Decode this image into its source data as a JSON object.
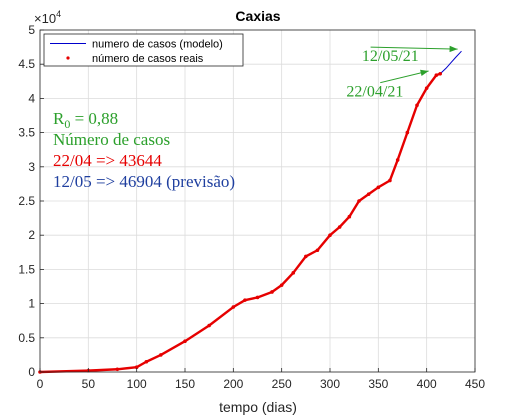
{
  "chart_data": {
    "type": "line",
    "title": "Caxias",
    "xlabel": "tempo (dias)",
    "ylabel": "",
    "xlim": [
      0,
      450
    ],
    "ylim": [
      0,
      5
    ],
    "y_multiplier_label": "×10",
    "y_multiplier_exp": "4",
    "x_ticks": [
      0,
      50,
      100,
      150,
      200,
      250,
      300,
      350,
      400,
      450
    ],
    "x_tick_labels": [
      "0",
      "50",
      "100",
      "150",
      "200",
      "250",
      "300",
      "350",
      "400",
      "450"
    ],
    "y_ticks": [
      0,
      0.5,
      1,
      1.5,
      2,
      2.5,
      3,
      3.5,
      4,
      4.5,
      5
    ],
    "y_tick_labels": [
      "0",
      "0.5",
      "1",
      "1.5",
      "2",
      "2.5",
      "3",
      "3.5",
      "4",
      "4.5",
      "5"
    ],
    "grid": true,
    "legend_position": "top-left",
    "series": [
      {
        "name": "numero de casos (modelo)",
        "color": "#0000cc",
        "style": "line",
        "x": [
          0,
          50,
          80,
          100,
          110,
          125,
          150,
          175,
          200,
          212,
          225,
          240,
          250,
          262,
          275,
          287,
          300,
          310,
          320,
          330,
          340,
          350,
          362,
          370,
          380,
          390,
          400,
          410,
          414,
          420,
          425,
          430,
          436
        ],
        "y": [
          0.0,
          0.02,
          0.04,
          0.07,
          0.15,
          0.25,
          0.45,
          0.68,
          0.95,
          1.05,
          1.09,
          1.17,
          1.27,
          1.45,
          1.69,
          1.78,
          2.0,
          2.12,
          2.27,
          2.5,
          2.6,
          2.7,
          2.8,
          3.1,
          3.5,
          3.9,
          4.15,
          4.34,
          4.36,
          4.44,
          4.52,
          4.6,
          4.69
        ]
      },
      {
        "name": "número de casos reais",
        "color": "#e60000",
        "style": "markers",
        "x": [
          0,
          50,
          80,
          100,
          110,
          125,
          150,
          175,
          200,
          212,
          225,
          240,
          250,
          262,
          275,
          287,
          300,
          310,
          320,
          330,
          340,
          350,
          362,
          370,
          380,
          390,
          400,
          410,
          414
        ],
        "y": [
          0.0,
          0.02,
          0.04,
          0.07,
          0.15,
          0.25,
          0.45,
          0.68,
          0.95,
          1.05,
          1.09,
          1.17,
          1.27,
          1.45,
          1.69,
          1.78,
          2.0,
          2.12,
          2.27,
          2.5,
          2.6,
          2.7,
          2.8,
          3.1,
          3.5,
          3.9,
          4.15,
          4.34,
          4.36
        ]
      }
    ],
    "annotations": [
      {
        "text": "12/05/21",
        "color": "#2ca02c",
        "x": 333,
        "y": 4.55,
        "arrow_to": [
          432,
          4.72
        ],
        "arrow_from": [
          342,
          4.75
        ]
      },
      {
        "text": "22/04/21",
        "color": "#2ca02c",
        "x": 317,
        "y": 4.03,
        "arrow_to": [
          402,
          4.4
        ],
        "arrow_from": [
          352,
          4.23
        ]
      }
    ],
    "info_box": {
      "r0_symbol": "R",
      "r0_sub": "0",
      "r0_value": " = 0,88",
      "r0_color": "#2ca02c",
      "cases_label": "Número de casos",
      "cases_color": "#2ca02c",
      "line_real": "22/04 => 43644",
      "line_real_color": "#e60000",
      "line_pred": "12/05 => 46904 (previsão)",
      "line_pred_color": "#1f3f9f"
    }
  }
}
